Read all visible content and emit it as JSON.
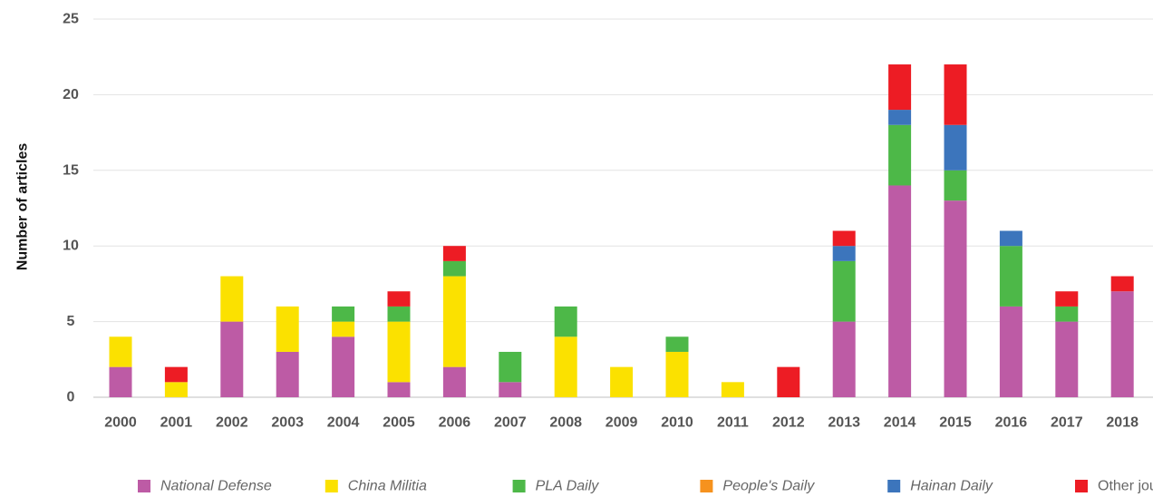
{
  "chart_data": {
    "type": "bar",
    "stacked": true,
    "title": "",
    "xlabel": "",
    "ylabel": "Number of articles",
    "ylim": [
      0,
      25
    ],
    "yticks": [
      0,
      5,
      10,
      15,
      20,
      25
    ],
    "grid": true,
    "legend_position": "bottom",
    "categories": [
      "2000",
      "2001",
      "2002",
      "2003",
      "2004",
      "2005",
      "2006",
      "2007",
      "2008",
      "2009",
      "2010",
      "2011",
      "2012",
      "2013",
      "2014",
      "2015",
      "2016",
      "2017",
      "2018"
    ],
    "series": [
      {
        "name": "National Defense",
        "color": "#bd5ba5",
        "italic": true,
        "values": [
          2,
          0,
          5,
          3,
          4,
          1,
          2,
          1,
          0,
          0,
          0,
          0,
          0,
          5,
          14,
          13,
          6,
          5,
          7
        ]
      },
      {
        "name": "China Militia",
        "color": "#fbe100",
        "italic": true,
        "values": [
          2,
          1,
          3,
          3,
          1,
          4,
          6,
          0,
          4,
          2,
          3,
          1,
          0,
          0,
          0,
          0,
          0,
          0,
          0
        ]
      },
      {
        "name": "PLA Daily",
        "color": "#4db848",
        "italic": true,
        "values": [
          0,
          0,
          0,
          0,
          1,
          1,
          1,
          2,
          2,
          0,
          1,
          0,
          0,
          4,
          4,
          2,
          4,
          1,
          0
        ]
      },
      {
        "name": "People's Daily",
        "color": "#f6921e",
        "italic": true,
        "values": [
          0,
          0,
          0,
          0,
          0,
          0,
          0,
          0,
          0,
          0,
          0,
          0,
          0,
          0,
          0,
          0,
          0,
          0,
          0
        ]
      },
      {
        "name": "Hainan Daily",
        "color": "#3c75bc",
        "italic": true,
        "values": [
          0,
          0,
          0,
          0,
          0,
          0,
          0,
          0,
          0,
          0,
          0,
          0,
          0,
          1,
          1,
          3,
          1,
          0,
          0
        ]
      },
      {
        "name": "Other journals",
        "color": "#ed1c24",
        "italic": false,
        "values": [
          0,
          1,
          0,
          0,
          0,
          1,
          1,
          0,
          0,
          0,
          0,
          0,
          2,
          1,
          3,
          4,
          0,
          1,
          1
        ]
      }
    ]
  }
}
